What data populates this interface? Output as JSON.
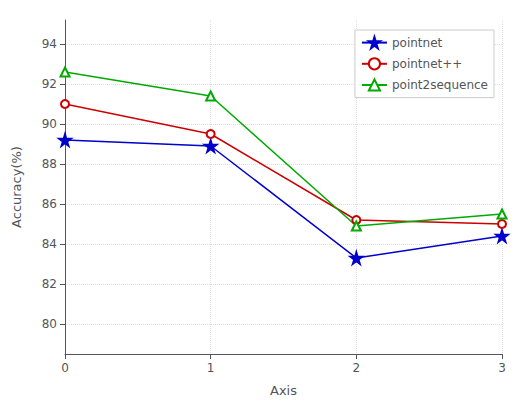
{
  "chart_data": {
    "type": "line",
    "x": [
      0,
      1,
      2,
      3
    ],
    "series": [
      {
        "name": "pointnet",
        "color": "#0000cc",
        "marker": "star",
        "values": [
          89.2,
          88.9,
          83.3,
          84.4
        ]
      },
      {
        "name": "pointnet++",
        "color": "#cc0000",
        "marker": "open_circle",
        "values": [
          91.0,
          89.5,
          85.2,
          85.0
        ]
      },
      {
        "name": "point2sequence",
        "color": "#00aa00",
        "marker": "open_triangle",
        "values": [
          92.6,
          91.4,
          84.9,
          85.5
        ]
      }
    ],
    "xlabel": "Axis",
    "ylabel": "Accuracy(%)",
    "xlim": [
      0,
      3
    ],
    "xticks": [
      0,
      1,
      2,
      3
    ],
    "ylim": [
      78.5,
      95.2
    ],
    "yticks": [
      80,
      82,
      84,
      86,
      88,
      90,
      92,
      94
    ],
    "grid": true,
    "legend": "upper right"
  }
}
